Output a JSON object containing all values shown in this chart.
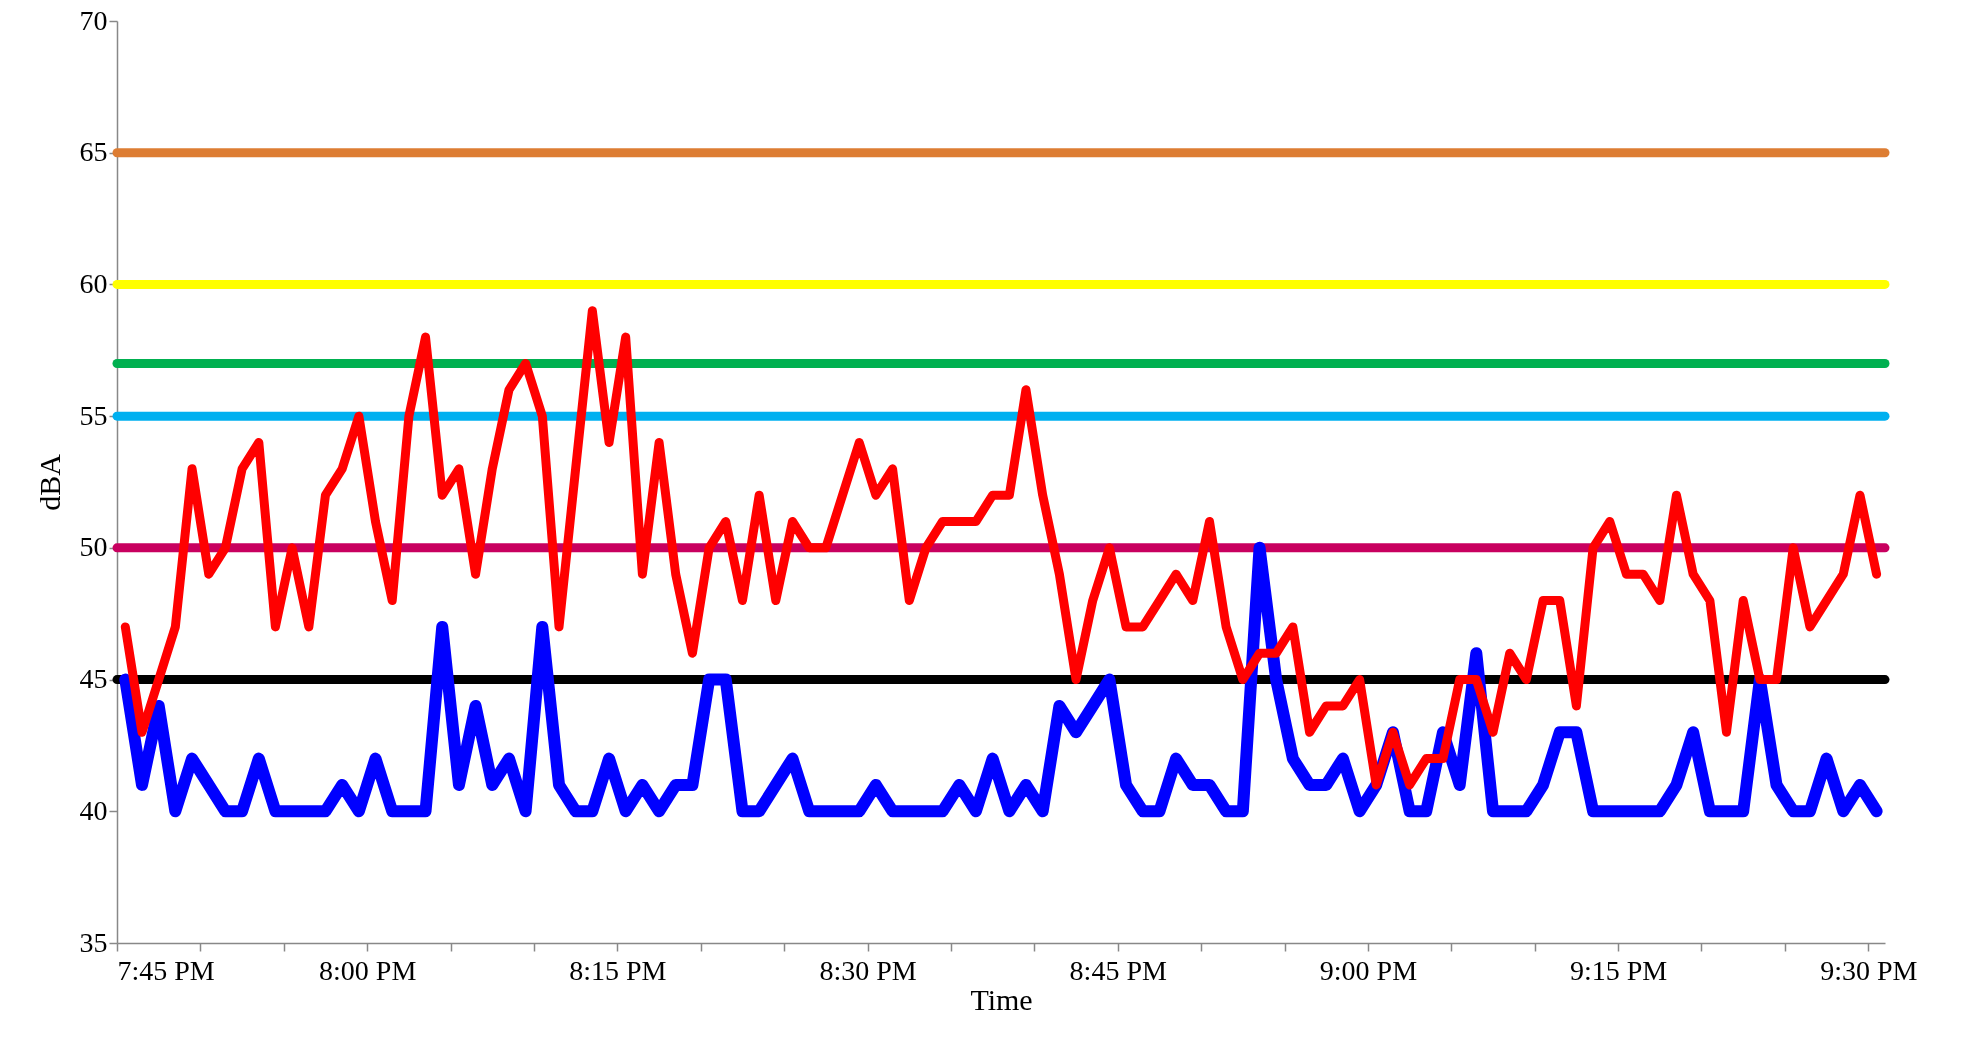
{
  "chart_data": {
    "type": "line",
    "xlabel": "Time",
    "ylabel": "dBA",
    "x": [
      19.7583,
      19.775,
      19.7917,
      19.8083,
      19.825,
      19.8417,
      19.8583,
      19.875,
      19.8917,
      19.9083,
      19.925,
      19.9417,
      19.9583,
      19.975,
      19.9917,
      20.0083,
      20.025,
      20.0417,
      20.0583,
      20.075,
      20.0917,
      20.1083,
      20.125,
      20.1417,
      20.1583,
      20.175,
      20.1917,
      20.2083,
      20.225,
      20.2417,
      20.2583,
      20.275,
      20.2917,
      20.3083,
      20.325,
      20.3417,
      20.3583,
      20.375,
      20.3917,
      20.4083,
      20.425,
      20.4417,
      20.4583,
      20.475,
      20.4917,
      20.5083,
      20.525,
      20.5417,
      20.5583,
      20.575,
      20.5917,
      20.6083,
      20.625,
      20.6417,
      20.6583,
      20.675,
      20.6917,
      20.7083,
      20.725,
      20.7417,
      20.7583,
      20.775,
      20.7917,
      20.8083,
      20.825,
      20.8417,
      20.8583,
      20.875,
      20.8917,
      20.9083,
      20.925,
      20.9417,
      20.9583,
      20.975,
      20.9917,
      21.0083,
      21.025,
      21.0417,
      21.0583,
      21.075,
      21.0917,
      21.1083,
      21.125,
      21.1417,
      21.1583,
      21.175,
      21.1917,
      21.2083,
      21.225,
      21.2417,
      21.2583,
      21.275,
      21.2917,
      21.3083,
      21.325,
      21.3417,
      21.3583,
      21.375,
      21.3917,
      21.4083,
      21.425,
      21.4417,
      21.4583,
      21.475,
      21.4917,
      21.5083
    ],
    "series": [
      {
        "color": "#0000ff",
        "values": [
          45,
          41,
          44,
          40,
          42,
          41,
          40,
          40,
          42,
          40,
          40,
          40,
          40,
          41,
          40,
          42,
          40,
          40,
          40,
          47,
          41,
          44,
          41,
          42,
          40,
          47,
          41,
          40,
          40,
          42,
          40,
          41,
          40,
          41,
          41,
          45,
          45,
          40,
          40,
          41,
          42,
          40,
          40,
          40,
          40,
          41,
          40,
          40,
          40,
          40,
          41,
          40,
          42,
          40,
          41,
          40,
          44,
          43,
          44,
          45,
          41,
          40,
          40,
          42,
          41,
          41,
          40,
          40,
          50,
          45,
          42,
          41,
          41,
          42,
          40,
          41,
          43,
          40,
          40,
          43,
          41,
          46,
          40,
          40,
          40,
          41,
          43,
          43,
          40,
          40,
          40,
          40,
          40,
          41,
          43,
          40,
          40,
          40,
          45,
          41,
          40,
          40,
          42,
          40,
          41,
          40
        ]
      },
      {
        "color": "#ff0000",
        "values": [
          47,
          43,
          45,
          47,
          53,
          49,
          50,
          53,
          54,
          47,
          50,
          47,
          52,
          53,
          55,
          51,
          48,
          55,
          58,
          52,
          53,
          49,
          53,
          56,
          57,
          55,
          47,
          53,
          59,
          54,
          58,
          49,
          54,
          49,
          46,
          50,
          51,
          48,
          52,
          48,
          51,
          50,
          50,
          52,
          54,
          52,
          53,
          48,
          50,
          51,
          51,
          51,
          52,
          52,
          56,
          52,
          49,
          45,
          48,
          50,
          47,
          47,
          48,
          49,
          48,
          51,
          47,
          45,
          46,
          46,
          47,
          43,
          44,
          44,
          45,
          41,
          43,
          41,
          42,
          42,
          45,
          45,
          43,
          46,
          45,
          48,
          48,
          44,
          50,
          51,
          49,
          49,
          48,
          52,
          49,
          48,
          43,
          48,
          45,
          45,
          50,
          47,
          48,
          49,
          52,
          49
        ]
      }
    ],
    "ref_lines": [
      {
        "axis": "y",
        "value": 65,
        "color": "#dd7d33"
      },
      {
        "axis": "y",
        "value": 60,
        "color": "#ffff00"
      },
      {
        "axis": "y",
        "value": 57,
        "color": "#00b050"
      },
      {
        "axis": "y",
        "value": 55,
        "color": "#00b0f0"
      },
      {
        "axis": "y",
        "value": 50,
        "color": "#c8005f"
      },
      {
        "axis": "y",
        "value": 45,
        "color": "#000000"
      }
    ],
    "ylim": [
      35,
      70
    ],
    "yticks": [
      35,
      40,
      45,
      50,
      55,
      60,
      65,
      70
    ],
    "xlim": [
      19.75,
      21.5167
    ],
    "xticks": [
      {
        "value": 19.75,
        "label": "7:45 PM"
      },
      {
        "value": 19.8333,
        "label": null
      },
      {
        "value": 19.9167,
        "label": null
      },
      {
        "value": 20,
        "label": "8:00 PM"
      },
      {
        "value": 20.0833,
        "label": null
      },
      {
        "value": 20.1667,
        "label": null
      },
      {
        "value": 20.25,
        "label": "8:15 PM"
      },
      {
        "value": 20.3333,
        "label": null
      },
      {
        "value": 20.4167,
        "label": null
      },
      {
        "value": 20.5,
        "label": "8:30 PM"
      },
      {
        "value": 20.5833,
        "label": null
      },
      {
        "value": 20.6667,
        "label": null
      },
      {
        "value": 20.75,
        "label": "8:45 PM"
      },
      {
        "value": 20.8333,
        "label": null
      },
      {
        "value": 20.9167,
        "label": null
      },
      {
        "value": 21,
        "label": "9:00 PM"
      },
      {
        "value": 21.0833,
        "label": null
      },
      {
        "value": 21.1667,
        "label": null
      },
      {
        "value": 21.25,
        "label": "9:15 PM"
      },
      {
        "value": 21.3333,
        "label": null
      },
      {
        "value": 21.4167,
        "label": null
      },
      {
        "value": 21.5,
        "label": "9:30 PM"
      }
    ],
    "grid": false
  }
}
